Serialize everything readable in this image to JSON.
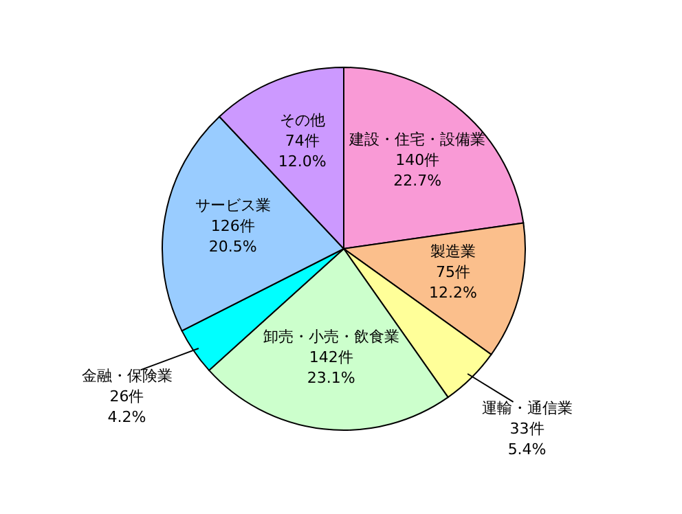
{
  "chart_data": {
    "type": "pie",
    "categories": [
      "建設・住宅・設備業",
      "製造業",
      "運輸・通信業",
      "卸売・小売・飲食業",
      "金融・保険業",
      "サービス業",
      "その他"
    ],
    "values": [
      140,
      75,
      33,
      142,
      26,
      126,
      74
    ],
    "value_labels": [
      "140件 22.7%",
      "75件 12.2%",
      "33件 5.4%",
      "142件 23.1%",
      "26件 4.2%",
      "126件 20.5%",
      "74件 12.0%"
    ],
    "colors": [
      "#f99ad6",
      "#fbbf8c",
      "#ffff99",
      "#ccffcc",
      "#00ffff",
      "#99ccff",
      "#cc99ff"
    ],
    "legend": false
  }
}
